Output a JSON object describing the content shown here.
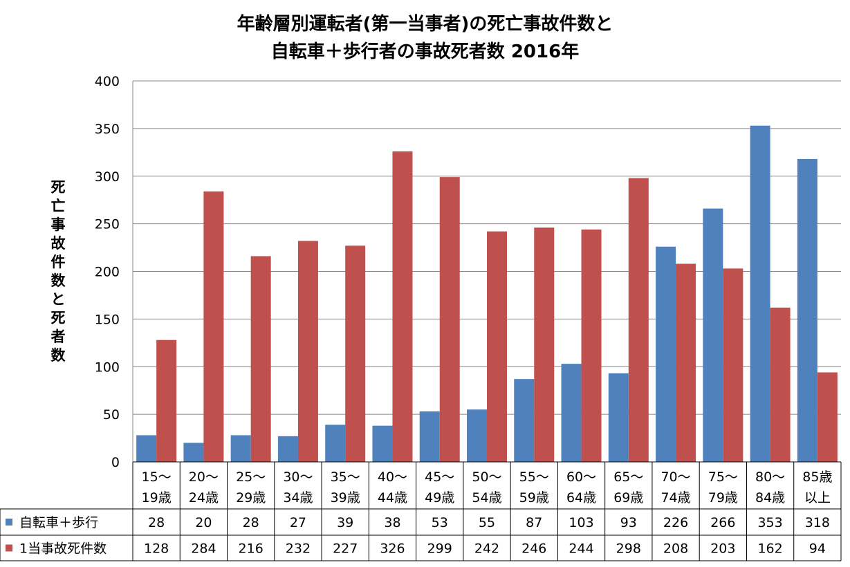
{
  "chart_data": {
    "type": "bar",
    "title": [
      "年齢層別運転者(第一当事者)の死亡事故件数と",
      "自転車＋歩行者の事故死者数 2016年"
    ],
    "ylabel": "死亡事故件数と死者数",
    "ylim": [
      0,
      400
    ],
    "yticks": [
      "0",
      "50",
      "100",
      "150",
      "200",
      "250",
      "300",
      "350",
      "400"
    ],
    "ytick_values": [
      0,
      50,
      100,
      150,
      200,
      250,
      300,
      350,
      400
    ],
    "grid": true,
    "categories": [
      [
        "15～",
        "19歳"
      ],
      [
        "20～",
        "24歳"
      ],
      [
        "25～",
        "29歳"
      ],
      [
        "30～",
        "34歳"
      ],
      [
        "35～",
        "39歳"
      ],
      [
        "40～",
        "44歳"
      ],
      [
        "45～",
        "49歳"
      ],
      [
        "50～",
        "54歳"
      ],
      [
        "55～",
        "59歳"
      ],
      [
        "60～",
        "64歳"
      ],
      [
        "65～",
        "69歳"
      ],
      [
        "70～",
        "74歳"
      ],
      [
        "75～",
        "79歳"
      ],
      [
        "80～",
        "84歳"
      ],
      [
        "85歳",
        "以上"
      ]
    ],
    "series": [
      {
        "name": "自転車＋歩行",
        "color": "#4f81bd",
        "values": [
          28,
          20,
          28,
          27,
          39,
          38,
          53,
          55,
          87,
          103,
          93,
          226,
          266,
          353,
          318
        ]
      },
      {
        "name": "1当事故死件数",
        "color": "#c0504d",
        "values": [
          128,
          284,
          216,
          232,
          227,
          326,
          299,
          242,
          246,
          244,
          298,
          208,
          203,
          162,
          94
        ]
      }
    ],
    "data_table": true
  }
}
